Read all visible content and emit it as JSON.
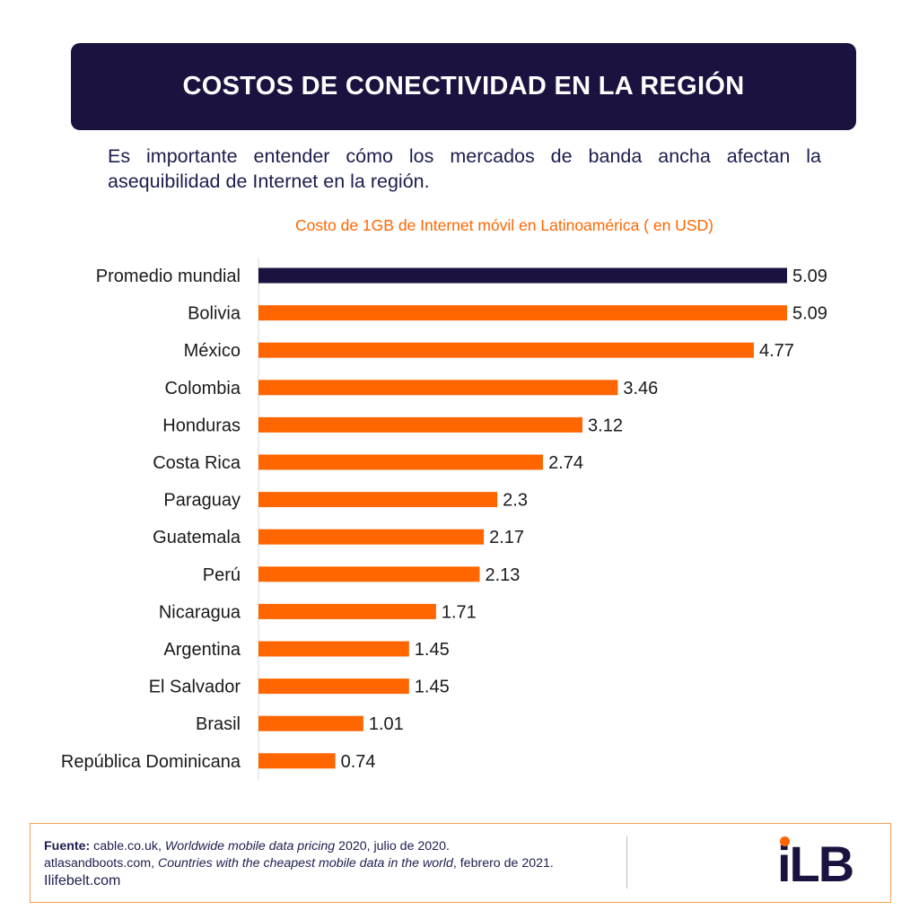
{
  "header": {
    "title": "COSTOS DE CONECTIVIDAD EN LA REGIÓN"
  },
  "intro": "Es importante entender cómo los mercados de banda ancha afectan la asequibilidad de Internet en la región.",
  "colors": {
    "highlight": "#1c1240",
    "bars": "#ff6600",
    "title_box": "#1c1240"
  },
  "chart_data": {
    "type": "bar",
    "orientation": "horizontal",
    "title": "Costo de 1GB de Internet móvil en Latinoamérica ( en USD)",
    "xlabel": "",
    "ylabel": "",
    "categories": [
      "Promedio mundial",
      "Bolivia",
      "México",
      "Colombia",
      "Honduras",
      "Costa Rica",
      "Paraguay",
      "Guatemala",
      "Perú",
      "Nicaragua",
      "Argentina",
      "El Salvador",
      "Brasil",
      "República Dominicana"
    ],
    "values": [
      5.09,
      5.09,
      4.77,
      3.46,
      3.12,
      2.74,
      2.3,
      2.17,
      2.13,
      1.71,
      1.45,
      1.45,
      1.01,
      0.74
    ],
    "value_labels": [
      "5.09",
      "5.09",
      "4.77",
      "3.46",
      "3.12",
      "2.74",
      "2.3",
      "2.17",
      "2.13",
      "1.71",
      "1.45",
      "1.45",
      "1.01",
      "0.74"
    ],
    "highlighted_category": "Promedio mundial",
    "xlim": [
      0,
      5.09
    ],
    "grid": false,
    "data_labels": true
  },
  "footer": {
    "source_label": "Fuente:",
    "source_line1_a": " cable.co.uk, ",
    "source_line1_b": "Worldwide mobile data pricing",
    "source_line1_c": " 2020, julio de 2020.",
    "source_line2_a": "atlasandboots.com, ",
    "source_line2_b": "Countries with the cheapest mobile data in the world",
    "source_line2_c": ", febrero de 2021.",
    "site": "Ilifebelt.com",
    "logo": "iLB"
  }
}
